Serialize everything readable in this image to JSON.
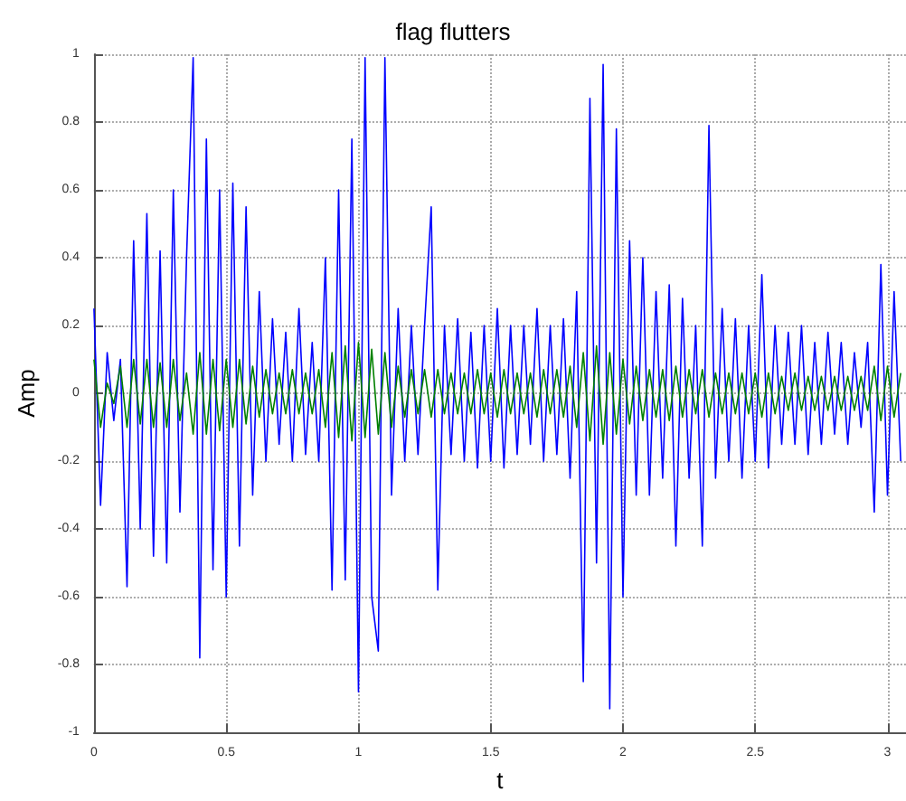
{
  "chart_data": {
    "type": "line",
    "title": "flag flutters",
    "xlabel": "t",
    "ylabel": "Amp",
    "x": [
      0,
      0.025,
      0.05,
      0.075,
      0.1,
      0.125,
      0.15,
      0.175,
      0.2,
      0.225,
      0.25,
      0.275,
      0.3,
      0.325,
      0.35,
      0.375,
      0.4,
      0.425,
      0.45,
      0.475,
      0.5,
      0.525,
      0.55,
      0.575,
      0.6,
      0.625,
      0.65,
      0.675,
      0.7,
      0.725,
      0.75,
      0.775,
      0.8,
      0.825,
      0.85,
      0.875,
      0.9,
      0.925,
      0.95,
      0.975,
      1,
      1.025,
      1.05,
      1.075,
      1.1,
      1.125,
      1.15,
      1.175,
      1.2,
      1.225,
      1.25,
      1.275,
      1.3,
      1.325,
      1.35,
      1.375,
      1.4,
      1.425,
      1.45,
      1.475,
      1.5,
      1.525,
      1.55,
      1.575,
      1.6,
      1.625,
      1.65,
      1.675,
      1.7,
      1.725,
      1.75,
      1.775,
      1.8,
      1.825,
      1.85,
      1.875,
      1.9,
      1.925,
      1.95,
      1.975,
      2,
      2.025,
      2.05,
      2.075,
      2.1,
      2.125,
      2.15,
      2.175,
      2.2,
      2.225,
      2.25,
      2.275,
      2.3,
      2.325,
      2.35,
      2.375,
      2.4,
      2.425,
      2.45,
      2.475,
      2.5,
      2.525,
      2.55,
      2.575,
      2.6,
      2.625,
      2.65,
      2.675,
      2.7,
      2.725,
      2.75,
      2.775,
      2.8,
      2.825,
      2.85,
      2.875,
      2.9,
      2.925,
      2.95,
      2.975,
      3,
      3.025,
      3.05
    ],
    "series": [
      {
        "color": "#0000ff",
        "values": [
          0.25,
          -0.33,
          0.12,
          -0.08,
          0.1,
          -0.57,
          0.45,
          -0.4,
          0.53,
          -0.48,
          0.42,
          -0.5,
          0.6,
          -0.35,
          0.4,
          0.99,
          -0.78,
          0.75,
          -0.52,
          0.6,
          -0.6,
          0.62,
          -0.45,
          0.55,
          -0.3,
          0.3,
          -0.2,
          0.22,
          -0.15,
          0.18,
          -0.2,
          0.25,
          -0.18,
          0.15,
          -0.2,
          0.4,
          -0.58,
          0.6,
          -0.55,
          0.75,
          -0.88,
          0.99,
          -0.6,
          -0.76,
          0.99,
          -0.3,
          0.25,
          -0.2,
          0.2,
          -0.18,
          0.2,
          0.55,
          -0.58,
          0.2,
          -0.18,
          0.22,
          -0.2,
          0.18,
          -0.22,
          0.2,
          -0.2,
          0.25,
          -0.22,
          0.2,
          -0.18,
          0.2,
          -0.15,
          0.25,
          -0.2,
          0.2,
          -0.18,
          0.22,
          -0.25,
          0.3,
          -0.85,
          0.87,
          -0.5,
          0.97,
          -0.93,
          0.78,
          -0.6,
          0.45,
          -0.3,
          0.4,
          -0.3,
          0.3,
          -0.25,
          0.32,
          -0.45,
          0.28,
          -0.25,
          0.2,
          -0.45,
          0.79,
          -0.25,
          0.25,
          -0.2,
          0.22,
          -0.25,
          0.2,
          -0.2,
          0.35,
          -0.22,
          0.2,
          -0.15,
          0.18,
          -0.15,
          0.2,
          -0.18,
          0.15,
          -0.15,
          0.18,
          -0.12,
          0.15,
          -0.15,
          0.12,
          -0.1,
          0.15,
          -0.35,
          0.38,
          -0.3,
          0.3,
          -0.2
        ]
      },
      {
        "color": "#008000",
        "values": [
          0.1,
          -0.1,
          0.03,
          -0.03,
          0.08,
          -0.1,
          0.1,
          -0.09,
          0.1,
          -0.1,
          0.09,
          -0.1,
          0.1,
          -0.08,
          0.06,
          -0.12,
          0.12,
          -0.12,
          0.1,
          -0.11,
          0.1,
          -0.1,
          0.1,
          -0.09,
          0.08,
          -0.07,
          0.07,
          -0.06,
          0.06,
          -0.06,
          0.07,
          -0.06,
          0.06,
          -0.06,
          0.07,
          -0.1,
          0.12,
          -0.13,
          0.14,
          -0.14,
          0.15,
          -0.13,
          0.13,
          -0.12,
          0.12,
          -0.1,
          0.08,
          -0.07,
          0.07,
          -0.06,
          0.07,
          -0.07,
          0.07,
          -0.06,
          0.06,
          -0.06,
          0.06,
          -0.06,
          0.07,
          -0.06,
          0.06,
          -0.07,
          0.07,
          -0.06,
          0.06,
          -0.06,
          0.06,
          -0.07,
          0.07,
          -0.06,
          0.07,
          -0.07,
          0.08,
          -0.1,
          0.12,
          -0.14,
          0.14,
          -0.15,
          0.12,
          -0.12,
          0.1,
          -0.09,
          0.08,
          -0.08,
          0.07,
          -0.07,
          0.07,
          -0.08,
          0.08,
          -0.07,
          0.07,
          -0.06,
          0.07,
          -0.07,
          0.06,
          -0.06,
          0.06,
          -0.06,
          0.06,
          -0.06,
          0.06,
          -0.07,
          0.06,
          -0.06,
          0.05,
          -0.05,
          0.06,
          -0.05,
          0.05,
          -0.05,
          0.05,
          -0.05,
          0.05,
          -0.05,
          0.05,
          -0.05,
          0.05,
          -0.05,
          0.08,
          -0.08,
          0.08,
          -0.07,
          0.06
        ]
      }
    ],
    "xlim": [
      0,
      3.07
    ],
    "xticks": [
      0,
      0.5,
      1,
      1.5,
      2,
      2.5,
      3
    ],
    "ylim": [
      -1,
      1
    ],
    "yticks": [
      -1,
      -0.8,
      -0.6,
      -0.4,
      -0.2,
      0,
      0.2,
      0.4,
      0.6,
      0.8,
      1
    ],
    "grid": true,
    "marker": "none",
    "line_style": "solid"
  }
}
